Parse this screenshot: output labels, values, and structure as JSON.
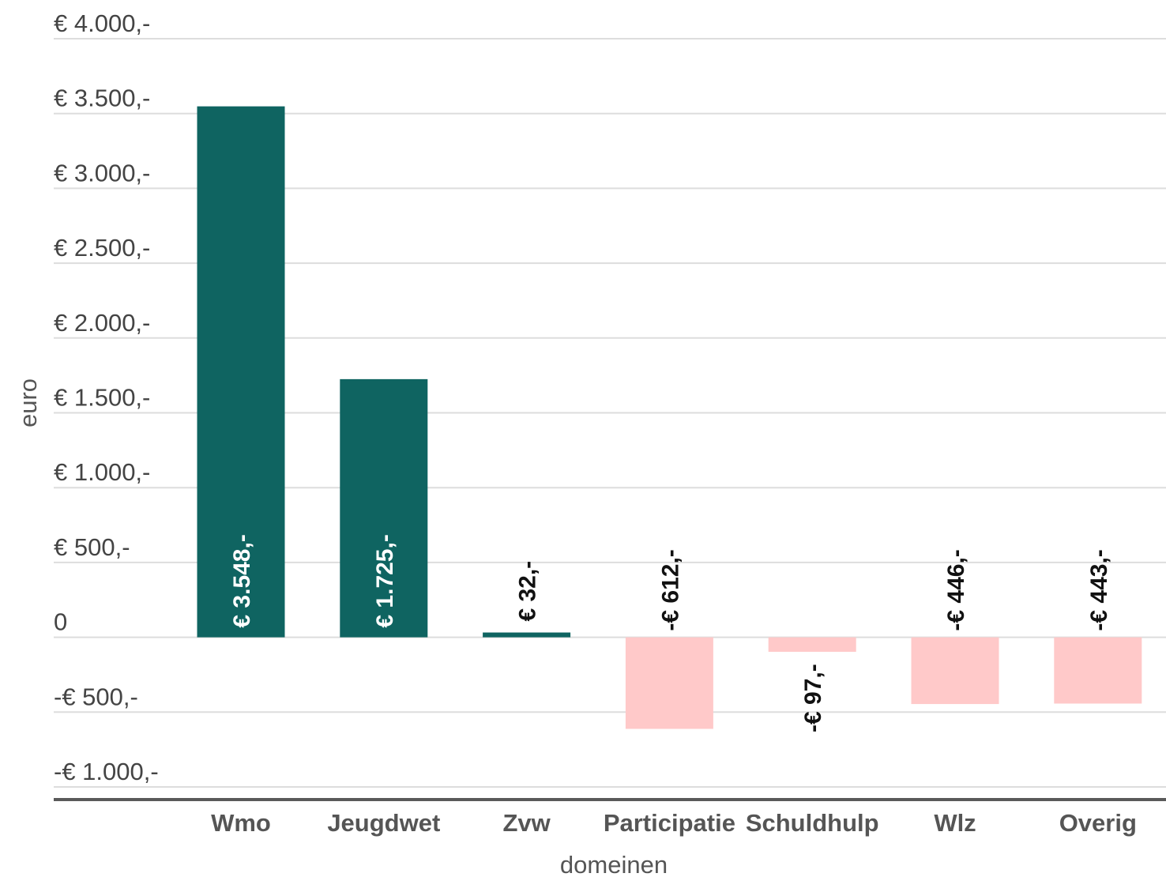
{
  "chart_data": {
    "type": "bar",
    "xlabel": "domeinen",
    "ylabel": "euro",
    "ylim": [
      -1000,
      4000
    ],
    "yticks": [
      {
        "value": 4000,
        "label": "€ 4.000,-"
      },
      {
        "value": 3500,
        "label": "€ 3.500,-"
      },
      {
        "value": 3000,
        "label": "€ 3.000,-"
      },
      {
        "value": 2500,
        "label": "€ 2.500,-"
      },
      {
        "value": 2000,
        "label": "€ 2.000,-"
      },
      {
        "value": 1500,
        "label": "€ 1.500,-"
      },
      {
        "value": 1000,
        "label": "€ 1.000,-"
      },
      {
        "value": 500,
        "label": "€ 500,-"
      },
      {
        "value": 0,
        "label": "0"
      },
      {
        "value": -500,
        "label": "-€ 500,-"
      },
      {
        "value": -1000,
        "label": "-€ 1.000,-"
      }
    ],
    "categories": [
      "Wmo",
      "Jeugdwet",
      "Zvw",
      "Participatie",
      "Schuldhulp",
      "Wlz",
      "Overig"
    ],
    "values": [
      3548,
      1725,
      32,
      -612,
      -97,
      -446,
      -443
    ],
    "data_labels": [
      "€ 3.548,-",
      "€ 1.725,-",
      "€ 32,-",
      "-€ 612,-",
      "-€ 97,-",
      "-€ 446,-",
      "-€ 443,-"
    ],
    "colors": {
      "positive": "#0f6461",
      "negative": "#ffc9c9",
      "label_inside": "#ffffff",
      "label_outside": "#111111"
    },
    "grid": true,
    "legend": "none"
  }
}
